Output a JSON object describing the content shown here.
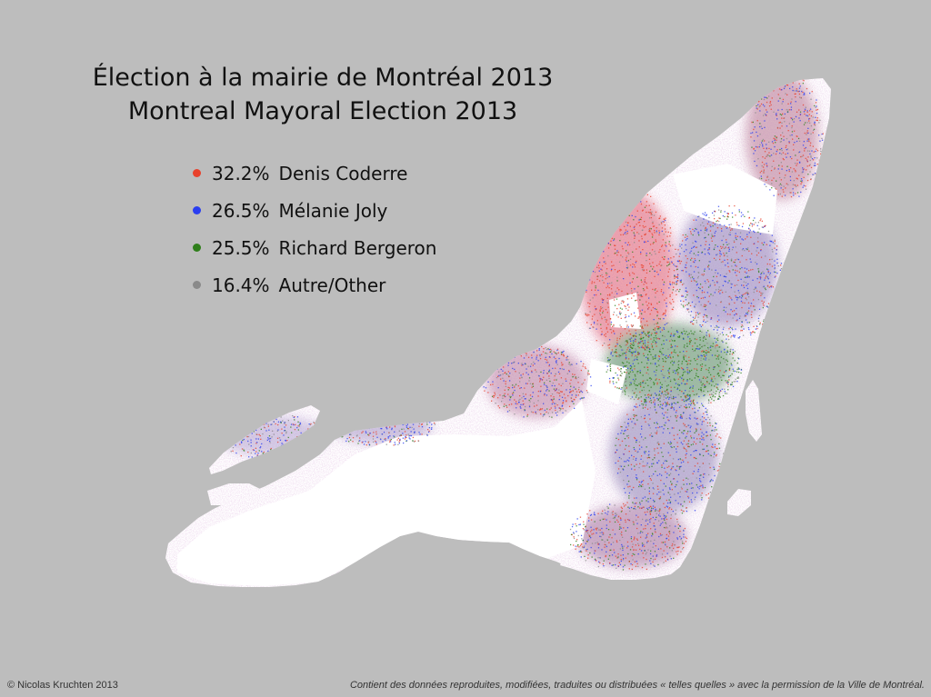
{
  "title": {
    "french": "Élection à la mairie de Montréal 2013",
    "english": "Montreal Mayoral Election 2013"
  },
  "legend": [
    {
      "percent": "32.2%",
      "name": "Denis Coderre",
      "color": "#e8412c",
      "share": 32.2
    },
    {
      "percent": "26.5%",
      "name": "Mélanie Joly",
      "color": "#2a3ef0",
      "share": 26.5
    },
    {
      "percent": "25.5%",
      "name": "Richard Bergeron",
      "color": "#2f7f1b",
      "share": 25.5
    },
    {
      "percent": "16.4%",
      "name": "Autre/Other",
      "color": "#8a8a8a",
      "share": 16.4
    }
  ],
  "footer": {
    "credit": "© Nicolas Kruchten 2013",
    "permission": "Contient des données reproduites, modifiées, traduites ou distribuées « telles quelles » avec la permission de la Ville de Montréal."
  },
  "colors": {
    "background": "#bdbdbd",
    "land": "#ffffff"
  }
}
